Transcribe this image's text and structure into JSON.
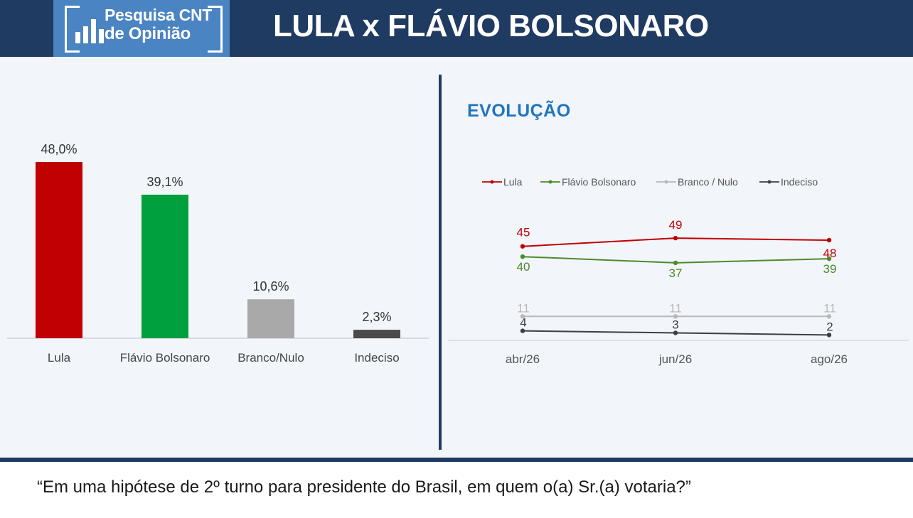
{
  "header": {
    "logo_line1": "Pesquisa CNT",
    "logo_line2": "de Opinião",
    "title": "LULA x FLÁVIO BOLSONARO"
  },
  "question": "“Em uma hipótese de 2º turno para presidente do Brasil, em quem o(a) Sr.(a) votaria?”",
  "evolution_title": "EVOLUÇÃO",
  "chart_data": [
    {
      "type": "bar",
      "categories": [
        "Lula",
        "Flávio Bolsonaro",
        "Branco/Nulo",
        "Indeciso"
      ],
      "values": [
        48.0,
        39.1,
        10.6,
        2.3
      ],
      "value_labels": [
        "48,0%",
        "39,1%",
        "10,6%",
        "2,3%"
      ],
      "colors": [
        "#c00000",
        "#00a03e",
        "#a9a9a9",
        "#4a4a4a"
      ],
      "ylim": [
        0,
        48
      ],
      "grid": false,
      "title": "",
      "xlabel": "",
      "ylabel": ""
    },
    {
      "type": "line",
      "categories": [
        "abr/26",
        "jun/26",
        "ago/26"
      ],
      "series": [
        {
          "name": "Lula",
          "values": [
            45,
            49,
            48
          ],
          "color": "#c00000"
        },
        {
          "name": "Flávio Bolsonaro",
          "values": [
            40,
            37,
            39
          ],
          "color": "#4e8a2a"
        },
        {
          "name": "Branco / Nulo",
          "values": [
            11,
            11,
            11
          ],
          "color": "#b8b8b8"
        },
        {
          "name": "Indeciso",
          "values": [
            4,
            3,
            2
          ],
          "color": "#3a3f46"
        }
      ],
      "legend_position": "top",
      "grid": false,
      "title": "",
      "xlabel": "",
      "ylabel": ""
    }
  ]
}
